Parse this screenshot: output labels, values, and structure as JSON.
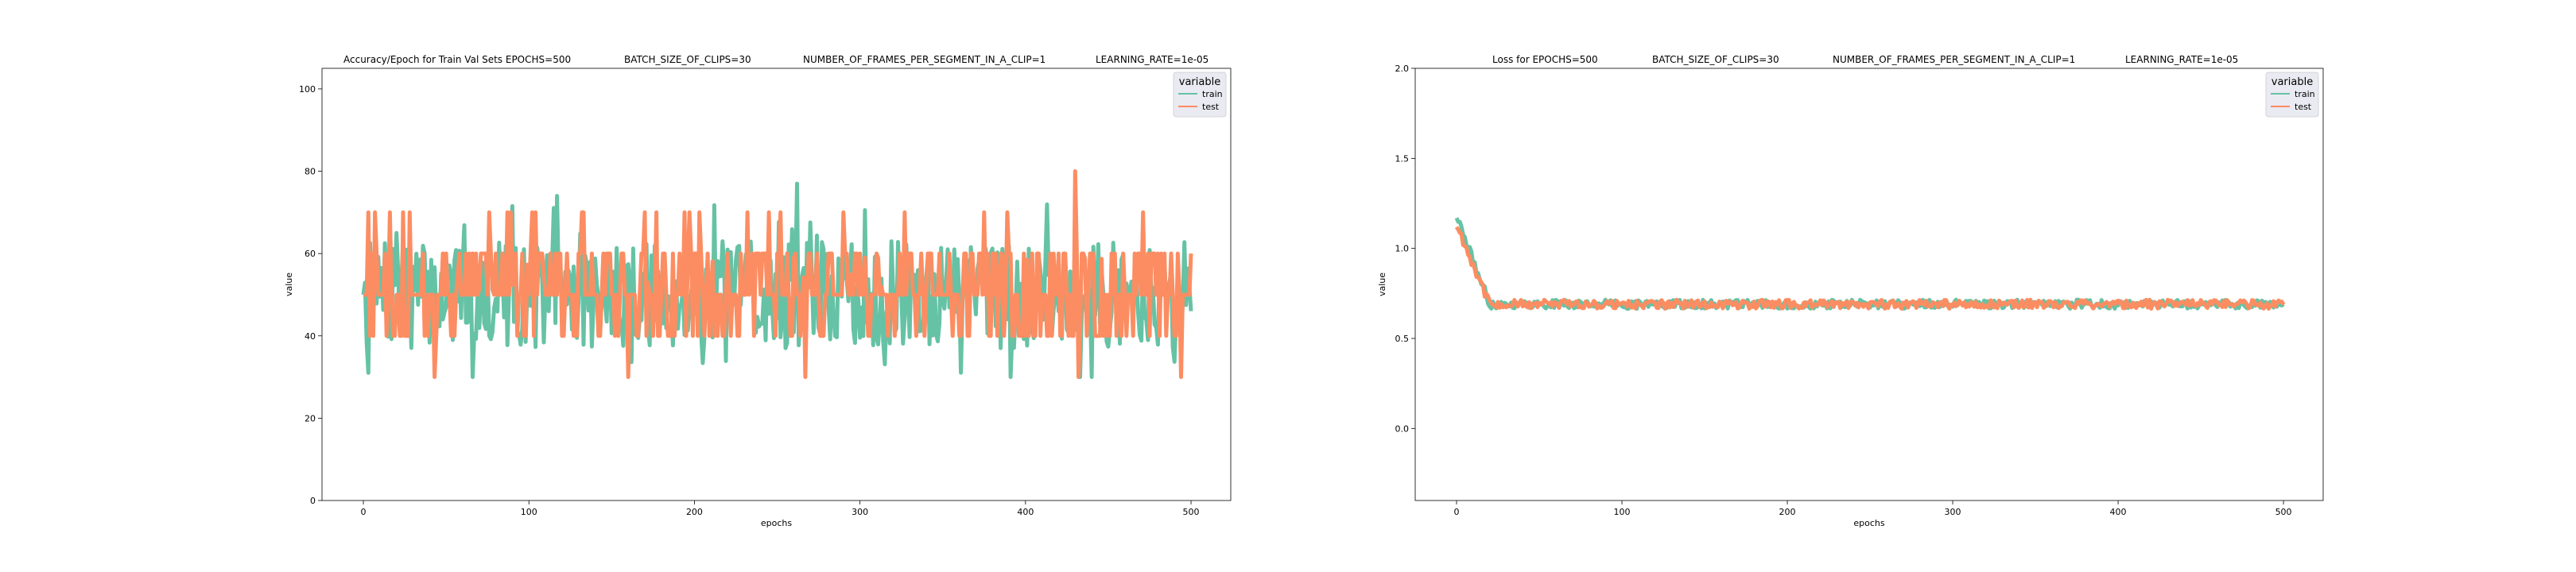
{
  "chart_data": [
    {
      "type": "line",
      "title_parts": [
        "Accuracy/Epoch for Train Val Sets EPOCHS=500",
        "BATCH_SIZE_OF_CLIPS=30",
        "NUMBER_OF_FRAMES_PER_SEGMENT_IN_A_CLIP=1",
        "LEARNING_RATE=1e-05"
      ],
      "xlabel": "epochs",
      "ylabel": "value",
      "xlim": [
        -25,
        524
      ],
      "ylim": [
        0,
        105
      ],
      "xticks": [
        0,
        100,
        200,
        300,
        400,
        500
      ],
      "yticks": [
        0,
        20,
        40,
        60,
        80,
        100
      ],
      "legend": {
        "title": "variable",
        "position": "top-right"
      },
      "series": [
        {
          "name": "train",
          "color": "#66c2a5",
          "x": [
            0,
            500
          ],
          "approx_mean": 50,
          "approx_range": [
            35,
            77
          ],
          "note_values": [
            [
              0,
              50
            ],
            [
              20,
              65
            ],
            [
              117,
              74
            ],
            [
              262,
              77
            ],
            [
              500,
              46
            ]
          ]
        },
        {
          "name": "test",
          "color": "#fc8d62",
          "x": [
            0,
            500
          ],
          "approx_mean": 50,
          "approx_range": [
            30,
            80
          ],
          "note_values": [
            [
              0,
              50
            ],
            [
              43,
              30
            ],
            [
              160,
              30
            ],
            [
              267,
              30
            ],
            [
              430,
              80
            ],
            [
              432,
              30
            ],
            [
              494,
              30
            ],
            [
              500,
              60
            ]
          ]
        }
      ]
    },
    {
      "type": "line",
      "title_parts": [
        "Loss for  EPOCHS=500",
        "BATCH_SIZE_OF_CLIPS=30",
        "NUMBER_OF_FRAMES_PER_SEGMENT_IN_A_CLIP=1",
        "LEARNING_RATE=1e-05"
      ],
      "xlabel": "epochs",
      "ylabel": "value",
      "xlim": [
        -25,
        524
      ],
      "ylim": [
        -0.4,
        2.0
      ],
      "xticks": [
        0,
        100,
        200,
        300,
        400,
        500
      ],
      "yticks": [
        0.0,
        0.5,
        1.0,
        1.5,
        2.0
      ],
      "ytick_labels": [
        "0.0",
        "0.5",
        "1.0",
        "1.5",
        "2.0"
      ],
      "legend": {
        "title": "variable",
        "position": "top-right"
      },
      "series": [
        {
          "name": "train",
          "color": "#66c2a5",
          "start": 1.18,
          "plateau": 0.69,
          "plateau_epoch": 20
        },
        {
          "name": "test",
          "color": "#fc8d62",
          "start": 1.13,
          "plateau": 0.69,
          "plateau_epoch": 20
        }
      ]
    }
  ]
}
